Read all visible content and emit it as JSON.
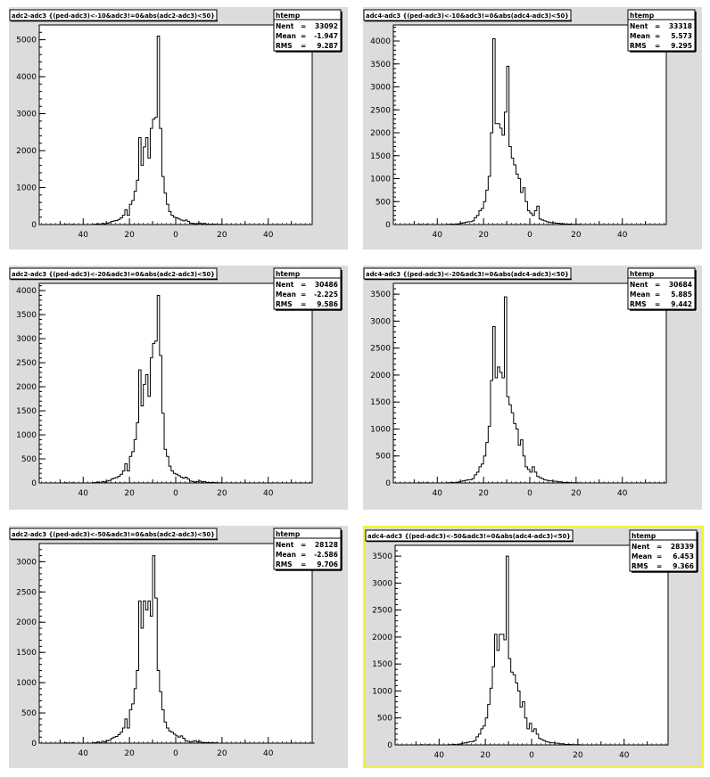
{
  "chart_data": [
    {
      "type": "histogram",
      "title": "adc2-adc3 {(ped-adc3)<-10&adc3!=0&abs(adc2-adc3)<50}",
      "stats": {
        "title": "htemp",
        "entries_label": "Nent",
        "entries": "33092",
        "mean_label": "Mean",
        "mean": "-1.947",
        "rms_label": "RMS",
        "rms": "9.287"
      },
      "x_tick_labels": [
        "40",
        "20",
        "0",
        "20",
        "40"
      ],
      "xlim": [
        -59,
        59
      ],
      "ylim": [
        0,
        5400
      ],
      "y_ticks": [
        0,
        1000,
        2000,
        3000,
        4000,
        5000
      ],
      "bin_width": 1,
      "bin_start": -59,
      "values": [
        0,
        0,
        0,
        0,
        0,
        0,
        0,
        0,
        0,
        0,
        0,
        5,
        0,
        0,
        5,
        0,
        0,
        0,
        0,
        0,
        0,
        0,
        0,
        5,
        10,
        20,
        5,
        30,
        20,
        40,
        50,
        80,
        100,
        110,
        140,
        180,
        250,
        400,
        250,
        550,
        650,
        900,
        1200,
        2350,
        1600,
        2100,
        2350,
        1800,
        2600,
        2850,
        2900,
        5100,
        2600,
        1300,
        850,
        550,
        350,
        250,
        200,
        180,
        150,
        120,
        100,
        120,
        80,
        40,
        30,
        20,
        30,
        40,
        20,
        30,
        10,
        10,
        10,
        10,
        5,
        5,
        5,
        0,
        0,
        0,
        0,
        0,
        0,
        0,
        0,
        0,
        0,
        0,
        0,
        0,
        0,
        0,
        0,
        0,
        0,
        0,
        0,
        0,
        0,
        0,
        0,
        0,
        0,
        0,
        0,
        0,
        0,
        0,
        0,
        0,
        0,
        0,
        0,
        0,
        0,
        0
      ]
    },
    {
      "type": "histogram",
      "title": "adc4-adc3 {(ped-adc3)<-10&adc3!=0&abs(adc4-adc3)<50}",
      "stats": {
        "title": "htemp",
        "entries_label": "Nent",
        "entries": "33318",
        "mean_label": "Mean",
        "mean": "5.573",
        "rms_label": "RMS",
        "rms": "9.295"
      },
      "x_tick_labels": [
        "40",
        "20",
        "0",
        "20",
        "40"
      ],
      "xlim": [
        -59,
        59
      ],
      "ylim": [
        0,
        4350
      ],
      "y_ticks": [
        0,
        500,
        1000,
        1500,
        2000,
        2500,
        3000,
        3500,
        4000
      ],
      "bin_width": 1,
      "bin_start": -59,
      "values": [
        0,
        0,
        0,
        0,
        0,
        0,
        0,
        0,
        0,
        0,
        0,
        5,
        0,
        0,
        5,
        0,
        0,
        0,
        0,
        0,
        0,
        0,
        0,
        5,
        5,
        10,
        5,
        10,
        20,
        30,
        40,
        50,
        60,
        60,
        80,
        150,
        200,
        300,
        350,
        500,
        750,
        1050,
        2000,
        4050,
        2200,
        2200,
        2100,
        1950,
        2450,
        3450,
        1700,
        1450,
        1300,
        1100,
        1000,
        700,
        800,
        500,
        300,
        250,
        200,
        300,
        400,
        120,
        100,
        80,
        60,
        50,
        40,
        40,
        30,
        30,
        20,
        20,
        10,
        10,
        10,
        5,
        5,
        5,
        5,
        0,
        0,
        0,
        0,
        0,
        0,
        0,
        0,
        0,
        0,
        0,
        0,
        0,
        0,
        0,
        0,
        0,
        0,
        0,
        0,
        0,
        0,
        0,
        0,
        0,
        0,
        0,
        0,
        0,
        0,
        0,
        0,
        0,
        0,
        0,
        0,
        0
      ]
    },
    {
      "type": "histogram",
      "title": "adc2-adc3 {(ped-adc3)<-20&adc3!=0&abs(adc2-adc3)<50}",
      "stats": {
        "title": "htemp",
        "entries_label": "Nent",
        "entries": "30486",
        "mean_label": "Mean",
        "mean": "-2.225",
        "rms_label": "RMS",
        "rms": "9.586"
      },
      "x_tick_labels": [
        "40",
        "20",
        "0",
        "20",
        "40"
      ],
      "xlim": [
        -59,
        59
      ],
      "ylim": [
        0,
        4150
      ],
      "y_ticks": [
        0,
        500,
        1000,
        1500,
        2000,
        2500,
        3000,
        3500,
        4000
      ],
      "bin_width": 1,
      "bin_start": -59,
      "values": [
        0,
        0,
        0,
        0,
        0,
        0,
        0,
        0,
        0,
        0,
        0,
        5,
        0,
        0,
        5,
        0,
        0,
        0,
        0,
        0,
        0,
        0,
        0,
        5,
        10,
        20,
        5,
        30,
        20,
        40,
        50,
        80,
        100,
        110,
        140,
        180,
        250,
        400,
        250,
        550,
        650,
        900,
        1250,
        2350,
        1600,
        2050,
        2250,
        1800,
        2600,
        2900,
        2950,
        3900,
        2650,
        1450,
        700,
        550,
        350,
        250,
        200,
        180,
        150,
        120,
        100,
        120,
        80,
        40,
        30,
        20,
        30,
        40,
        20,
        30,
        10,
        10,
        10,
        10,
        5,
        5,
        5,
        0,
        0,
        0,
        0,
        0,
        0,
        0,
        0,
        0,
        0,
        0,
        0,
        0,
        0,
        0,
        0,
        0,
        0,
        0,
        0,
        0,
        0,
        0,
        0,
        0,
        0,
        0,
        0,
        0,
        0,
        0,
        0,
        0,
        0,
        0,
        0,
        0,
        0,
        0
      ]
    },
    {
      "type": "histogram",
      "title": "adc4-adc3 {(ped-adc3)<-20&adc3!=0&abs(adc4-adc3)<50}",
      "stats": {
        "title": "htemp",
        "entries_label": "Nent",
        "entries": "30684",
        "mean_label": "Mean",
        "mean": "5.885",
        "rms_label": "RMS",
        "rms": "9.442"
      },
      "x_tick_labels": [
        "40",
        "20",
        "0",
        "20",
        "40"
      ],
      "xlim": [
        -59,
        59
      ],
      "ylim": [
        0,
        3700
      ],
      "y_ticks": [
        0,
        500,
        1000,
        1500,
        2000,
        2500,
        3000,
        3500
      ],
      "bin_width": 1,
      "bin_start": -59,
      "values": [
        0,
        0,
        0,
        0,
        0,
        0,
        0,
        0,
        0,
        0,
        0,
        5,
        0,
        0,
        5,
        0,
        0,
        0,
        0,
        0,
        0,
        0,
        0,
        5,
        5,
        10,
        5,
        10,
        20,
        30,
        40,
        50,
        60,
        60,
        80,
        150,
        200,
        300,
        350,
        500,
        750,
        1050,
        1900,
        2900,
        1950,
        2150,
        2050,
        1950,
        3450,
        1600,
        1450,
        1300,
        1100,
        1000,
        700,
        800,
        500,
        300,
        250,
        200,
        300,
        200,
        120,
        100,
        80,
        60,
        50,
        40,
        40,
        30,
        30,
        20,
        20,
        10,
        10,
        10,
        5,
        5,
        5,
        5,
        0,
        0,
        0,
        0,
        0,
        0,
        0,
        0,
        0,
        0,
        0,
        0,
        0,
        0,
        0,
        0,
        0,
        0,
        0,
        0,
        0,
        0,
        0,
        0,
        0,
        0,
        0,
        0,
        0,
        0,
        0,
        0,
        0,
        0,
        0,
        0,
        0,
        0
      ]
    },
    {
      "type": "histogram",
      "title": "adc2-adc3 {(ped-adc3)<-50&adc3!=0&abs(adc2-adc3)<50}",
      "stats": {
        "title": "htemp",
        "entries_label": "Nent",
        "entries": "28128",
        "mean_label": "Mean",
        "mean": "-2.586",
        "rms_label": "RMS",
        "rms": "9.706"
      },
      "x_tick_labels": [
        "40",
        "20",
        "0",
        "20",
        "40"
      ],
      "xlim": [
        -59,
        59
      ],
      "ylim": [
        0,
        3300
      ],
      "y_ticks": [
        0,
        500,
        1000,
        1500,
        2000,
        2500,
        3000
      ],
      "bin_width": 1,
      "bin_start": -59,
      "values": [
        0,
        0,
        0,
        0,
        0,
        0,
        0,
        0,
        0,
        0,
        0,
        5,
        0,
        0,
        5,
        0,
        0,
        0,
        0,
        0,
        0,
        0,
        0,
        5,
        10,
        20,
        5,
        30,
        20,
        40,
        50,
        80,
        100,
        110,
        140,
        180,
        250,
        400,
        250,
        550,
        650,
        900,
        1200,
        2350,
        1900,
        2350,
        2200,
        2350,
        2100,
        3100,
        2400,
        1200,
        850,
        550,
        350,
        250,
        200,
        180,
        150,
        120,
        100,
        120,
        80,
        40,
        30,
        20,
        30,
        40,
        20,
        30,
        10,
        10,
        10,
        10,
        5,
        5,
        5,
        0,
        0,
        0,
        0,
        0,
        0,
        0,
        0,
        0,
        0,
        0,
        0,
        0,
        0,
        0,
        0,
        0,
        0,
        0,
        0,
        0,
        0,
        0,
        0,
        0,
        0,
        0,
        0,
        0,
        0,
        0,
        0,
        0,
        0,
        0,
        0,
        0,
        0,
        0,
        0,
        0,
        0
      ]
    },
    {
      "type": "histogram",
      "title": "adc4-adc3 {(ped-adc3)<-50&adc3!=0&abs(adc4-adc3)<50}",
      "stats": {
        "title": "htemp",
        "entries_label": "Nent",
        "entries": "28339",
        "mean_label": "Mean",
        "mean": "6.453",
        "rms_label": "RMS",
        "rms": "9.366"
      },
      "x_tick_labels": [
        "40",
        "20",
        "0",
        "20",
        "40"
      ],
      "xlim": [
        -59,
        59
      ],
      "ylim": [
        0,
        3700
      ],
      "y_ticks": [
        0,
        500,
        1000,
        1500,
        2000,
        2500,
        3000,
        3500
      ],
      "bin_width": 1,
      "bin_start": -59,
      "values": [
        0,
        0,
        0,
        0,
        0,
        0,
        0,
        0,
        0,
        0,
        0,
        5,
        0,
        0,
        5,
        0,
        0,
        0,
        0,
        0,
        0,
        0,
        0,
        5,
        5,
        10,
        5,
        10,
        20,
        30,
        40,
        50,
        60,
        60,
        80,
        150,
        200,
        300,
        350,
        500,
        750,
        1050,
        1450,
        2050,
        1750,
        2050,
        2050,
        1950,
        3500,
        1600,
        1350,
        1300,
        1150,
        1000,
        700,
        800,
        500,
        300,
        400,
        250,
        300,
        200,
        120,
        100,
        80,
        60,
        50,
        40,
        40,
        30,
        30,
        20,
        20,
        10,
        10,
        10,
        5,
        5,
        5,
        5,
        0,
        0,
        0,
        0,
        0,
        0,
        0,
        0,
        0,
        0,
        0,
        0,
        0,
        0,
        0,
        0,
        0,
        0,
        0,
        0,
        0,
        0,
        0,
        0,
        0,
        0,
        0,
        0,
        0,
        0,
        0,
        0,
        0,
        0,
        0,
        0,
        0,
        0
      ]
    }
  ]
}
